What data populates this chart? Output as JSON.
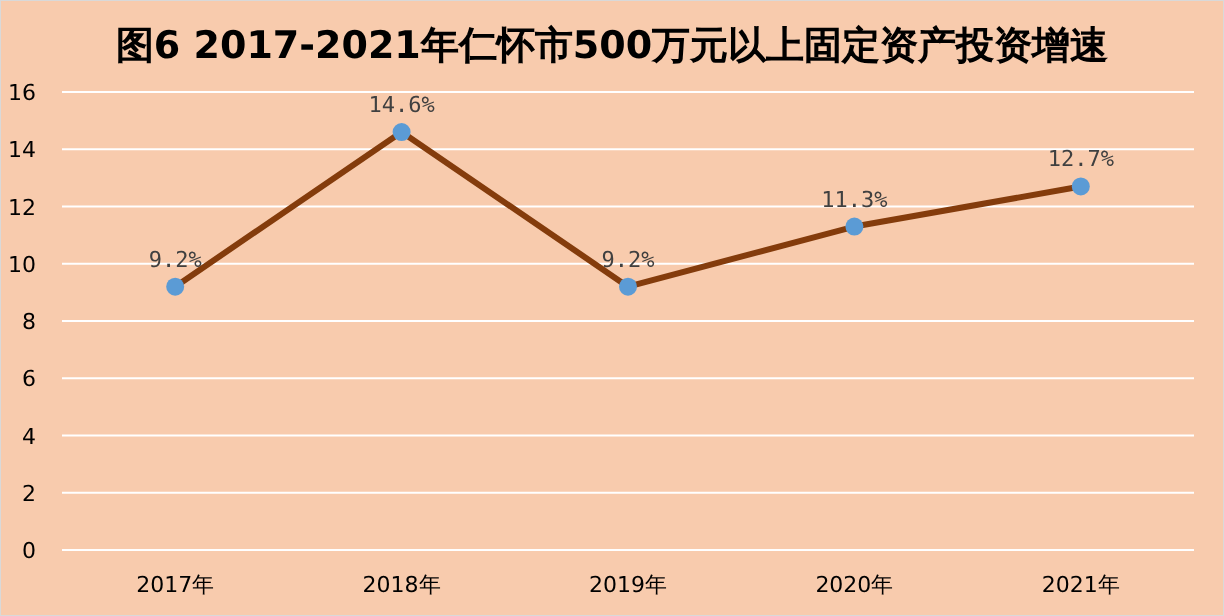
{
  "chart_data": {
    "type": "line",
    "title": "图6  2017-2021年仁怀市500万元以上固定资产投资增速",
    "categories": [
      "2017年",
      "2018年",
      "2019年",
      "2020年",
      "2021年"
    ],
    "series": [
      {
        "color": "#843c0c",
        "values": [
          9.2,
          14.6,
          9.2,
          11.3,
          12.7
        ],
        "value_labels": [
          "9.2%",
          "14.6%",
          "9.2%",
          "11.3%",
          "12.7%"
        ]
      }
    ],
    "ylim": [
      0,
      16
    ],
    "yticks": [
      0,
      2,
      4,
      6,
      8,
      10,
      12,
      14,
      16
    ],
    "grid": "y",
    "marker": "circle",
    "line_style": "solid"
  }
}
